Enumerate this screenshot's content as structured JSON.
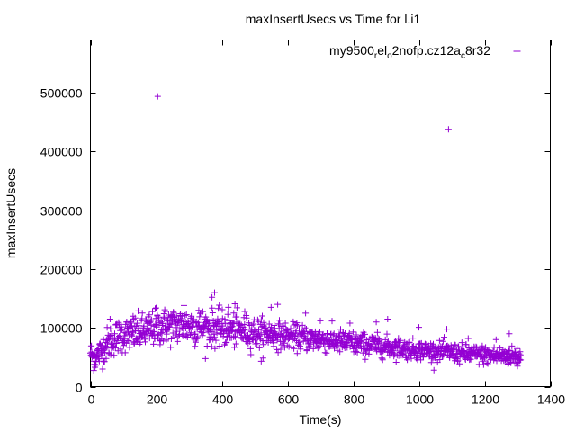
{
  "chart_data": {
    "type": "scatter",
    "title": "maxInsertUsecs vs Time for l.i1",
    "xlabel": "Time(s)",
    "ylabel": "maxInsertUsecs",
    "xlim": [
      0,
      1400
    ],
    "ylim": [
      0,
      590000
    ],
    "x_ticks": [
      0,
      200,
      400,
      600,
      800,
      1000,
      1200,
      1400
    ],
    "y_ticks": [
      0,
      100000,
      200000,
      300000,
      400000,
      500000
    ],
    "x_tick_labels": [
      "0",
      "200",
      "400",
      "600",
      "800",
      "1000",
      "1200",
      "1400"
    ],
    "y_tick_labels": [
      "0",
      "100000",
      "200000",
      "300000",
      "400000",
      "500000"
    ],
    "grid": false,
    "legend_position": "top-right",
    "series": [
      {
        "name": "my9500_rel_o2nofp.cz12a_c8r32",
        "legend_parts": [
          "my9500",
          "r",
          "el",
          "o",
          "2nofp.cz12a",
          "c",
          "8r32"
        ],
        "color": "#9400d3",
        "marker": "plus",
        "outliers": [
          [
            205,
            494000
          ],
          [
            1090,
            438000
          ]
        ],
        "trend": [
          [
            0,
            60000
          ],
          [
            10,
            48000
          ],
          [
            25,
            55000
          ],
          [
            50,
            72000
          ],
          [
            80,
            85000
          ],
          [
            110,
            88000
          ],
          [
            150,
            92000
          ],
          [
            200,
            100000
          ],
          [
            250,
            103000
          ],
          [
            300,
            104000
          ],
          [
            350,
            101000
          ],
          [
            400,
            98000
          ],
          [
            450,
            95000
          ],
          [
            500,
            92000
          ],
          [
            550,
            90000
          ],
          [
            600,
            86000
          ],
          [
            650,
            83000
          ],
          [
            700,
            80000
          ],
          [
            750,
            77000
          ],
          [
            800,
            74000
          ],
          [
            850,
            71000
          ],
          [
            900,
            68000
          ],
          [
            950,
            65000
          ],
          [
            1000,
            62000
          ],
          [
            1050,
            60000
          ],
          [
            1100,
            58000
          ],
          [
            1150,
            55000
          ],
          [
            1200,
            54000
          ],
          [
            1250,
            52000
          ],
          [
            1310,
            52000
          ]
        ],
        "spread": [
          [
            0,
            9000
          ],
          [
            50,
            14000
          ],
          [
            150,
            15000
          ],
          [
            300,
            16000
          ],
          [
            450,
            14000
          ],
          [
            600,
            11000
          ],
          [
            800,
            10000
          ],
          [
            1000,
            8000
          ],
          [
            1200,
            8000
          ],
          [
            1310,
            8000
          ]
        ],
        "spikes": [
          [
            60,
            115000
          ],
          [
            130,
            120000
          ],
          [
            200,
            134000
          ],
          [
            230,
            128000
          ],
          [
            285,
            138000
          ],
          [
            330,
            130000
          ],
          [
            370,
            152000
          ],
          [
            378,
            160000
          ],
          [
            420,
            135000
          ],
          [
            440,
            141000
          ],
          [
            470,
            128000
          ],
          [
            550,
            135000
          ],
          [
            570,
            140000
          ],
          [
            655,
            125000
          ],
          [
            700,
            112000
          ],
          [
            790,
            108000
          ],
          [
            870,
            110000
          ],
          [
            905,
            115000
          ],
          [
            1000,
            101000
          ],
          [
            1085,
            98000
          ],
          [
            1150,
            82000
          ],
          [
            1235,
            80000
          ],
          [
            1275,
            90000
          ],
          [
            1300,
            35000
          ],
          [
            520,
            43000
          ],
          [
            14,
            33000
          ]
        ],
        "n_points": 1310
      }
    ]
  }
}
